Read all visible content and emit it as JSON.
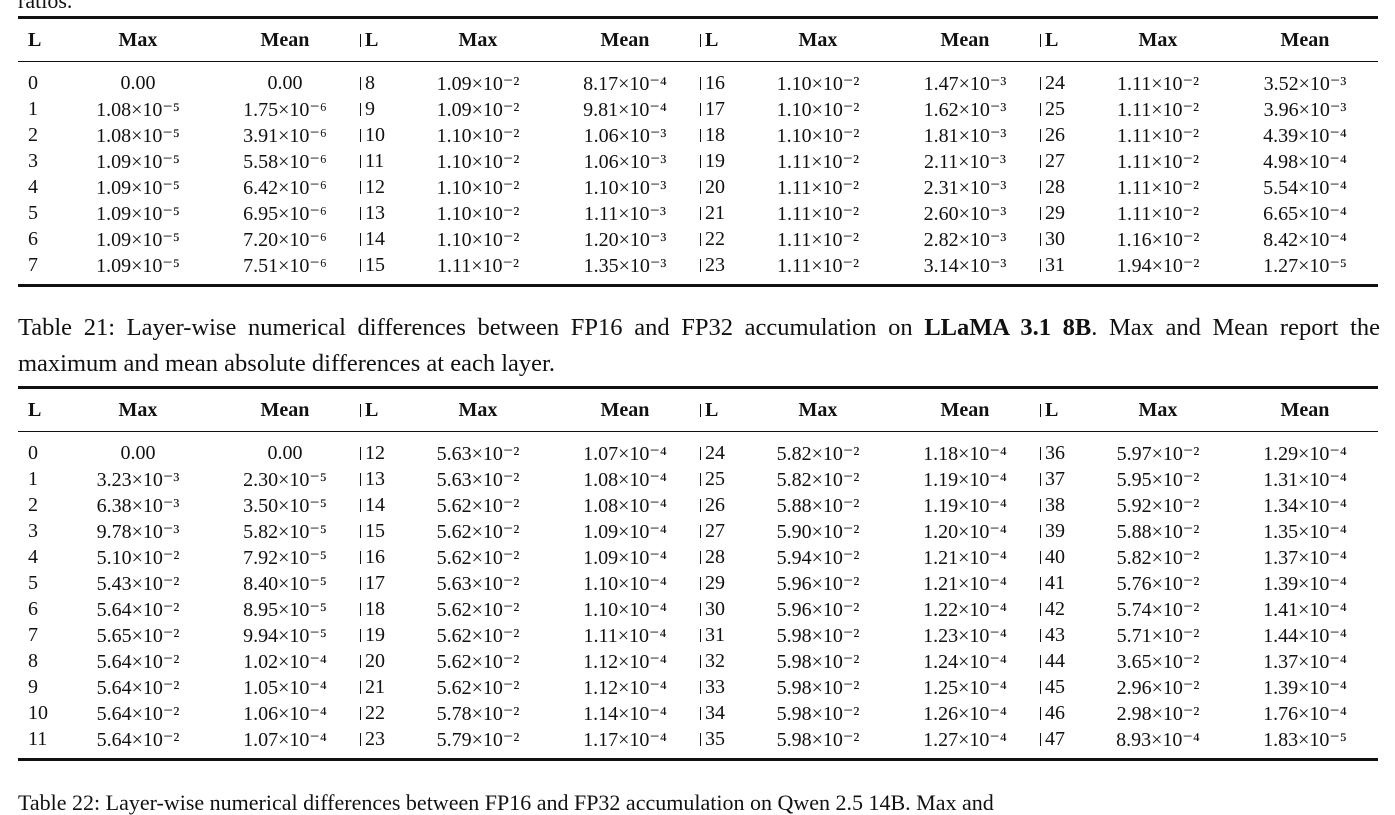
{
  "top_fragment": "ratios.",
  "bottom_fragment": "Table 22: Layer-wise numerical differences between FP16 and FP32 accumulation on Qwen 2.5 14B. Max and",
  "headers": [
    "L",
    "Max",
    "Mean"
  ],
  "table21": {
    "caption_pre": "Table 21: Layer-wise numerical differences between FP16 and FP32 accumulation on ",
    "caption_model": "LLaMA 3.1 8B",
    "caption_post": ". Max and Mean report the maximum and mean absolute differences at each layer.",
    "rows": [
      [
        [
          "0",
          "0.00",
          "0.00"
        ],
        [
          "8",
          "1.09×10⁻²",
          "8.17×10⁻⁴"
        ],
        [
          "16",
          "1.10×10⁻²",
          "1.47×10⁻³"
        ],
        [
          "24",
          "1.11×10⁻²",
          "3.52×10⁻³"
        ]
      ],
      [
        [
          "1",
          "1.08×10⁻⁵",
          "1.75×10⁻⁶"
        ],
        [
          "9",
          "1.09×10⁻²",
          "9.81×10⁻⁴"
        ],
        [
          "17",
          "1.10×10⁻²",
          "1.62×10⁻³"
        ],
        [
          "25",
          "1.11×10⁻²",
          "3.96×10⁻³"
        ]
      ],
      [
        [
          "2",
          "1.08×10⁻⁵",
          "3.91×10⁻⁶"
        ],
        [
          "10",
          "1.10×10⁻²",
          "1.06×10⁻³"
        ],
        [
          "18",
          "1.10×10⁻²",
          "1.81×10⁻³"
        ],
        [
          "26",
          "1.11×10⁻²",
          "4.39×10⁻⁴"
        ]
      ],
      [
        [
          "3",
          "1.09×10⁻⁵",
          "5.58×10⁻⁶"
        ],
        [
          "11",
          "1.10×10⁻²",
          "1.06×10⁻³"
        ],
        [
          "19",
          "1.11×10⁻²",
          "2.11×10⁻³"
        ],
        [
          "27",
          "1.11×10⁻²",
          "4.98×10⁻⁴"
        ]
      ],
      [
        [
          "4",
          "1.09×10⁻⁵",
          "6.42×10⁻⁶"
        ],
        [
          "12",
          "1.10×10⁻²",
          "1.10×10⁻³"
        ],
        [
          "20",
          "1.11×10⁻²",
          "2.31×10⁻³"
        ],
        [
          "28",
          "1.11×10⁻²",
          "5.54×10⁻⁴"
        ]
      ],
      [
        [
          "5",
          "1.09×10⁻⁵",
          "6.95×10⁻⁶"
        ],
        [
          "13",
          "1.10×10⁻²",
          "1.11×10⁻³"
        ],
        [
          "21",
          "1.11×10⁻²",
          "2.60×10⁻³"
        ],
        [
          "29",
          "1.11×10⁻²",
          "6.65×10⁻⁴"
        ]
      ],
      [
        [
          "6",
          "1.09×10⁻⁵",
          "7.20×10⁻⁶"
        ],
        [
          "14",
          "1.10×10⁻²",
          "1.20×10⁻³"
        ],
        [
          "22",
          "1.11×10⁻²",
          "2.82×10⁻³"
        ],
        [
          "30",
          "1.16×10⁻²",
          "8.42×10⁻⁴"
        ]
      ],
      [
        [
          "7",
          "1.09×10⁻⁵",
          "7.51×10⁻⁶"
        ],
        [
          "15",
          "1.11×10⁻²",
          "1.35×10⁻³"
        ],
        [
          "23",
          "1.11×10⁻²",
          "3.14×10⁻³"
        ],
        [
          "31",
          "1.94×10⁻²",
          "1.27×10⁻⁵"
        ]
      ]
    ]
  },
  "table22": {
    "rows": [
      [
        [
          "0",
          "0.00",
          "0.00"
        ],
        [
          "12",
          "5.63×10⁻²",
          "1.07×10⁻⁴"
        ],
        [
          "24",
          "5.82×10⁻²",
          "1.18×10⁻⁴"
        ],
        [
          "36",
          "5.97×10⁻²",
          "1.29×10⁻⁴"
        ]
      ],
      [
        [
          "1",
          "3.23×10⁻³",
          "2.30×10⁻⁵"
        ],
        [
          "13",
          "5.63×10⁻²",
          "1.08×10⁻⁴"
        ],
        [
          "25",
          "5.82×10⁻²",
          "1.19×10⁻⁴"
        ],
        [
          "37",
          "5.95×10⁻²",
          "1.31×10⁻⁴"
        ]
      ],
      [
        [
          "2",
          "6.38×10⁻³",
          "3.50×10⁻⁵"
        ],
        [
          "14",
          "5.62×10⁻²",
          "1.08×10⁻⁴"
        ],
        [
          "26",
          "5.88×10⁻²",
          "1.19×10⁻⁴"
        ],
        [
          "38",
          "5.92×10⁻²",
          "1.34×10⁻⁴"
        ]
      ],
      [
        [
          "3",
          "9.78×10⁻³",
          "5.82×10⁻⁵"
        ],
        [
          "15",
          "5.62×10⁻²",
          "1.09×10⁻⁴"
        ],
        [
          "27",
          "5.90×10⁻²",
          "1.20×10⁻⁴"
        ],
        [
          "39",
          "5.88×10⁻²",
          "1.35×10⁻⁴"
        ]
      ],
      [
        [
          "4",
          "5.10×10⁻²",
          "7.92×10⁻⁵"
        ],
        [
          "16",
          "5.62×10⁻²",
          "1.09×10⁻⁴"
        ],
        [
          "28",
          "5.94×10⁻²",
          "1.21×10⁻⁴"
        ],
        [
          "40",
          "5.82×10⁻²",
          "1.37×10⁻⁴"
        ]
      ],
      [
        [
          "5",
          "5.43×10⁻²",
          "8.40×10⁻⁵"
        ],
        [
          "17",
          "5.63×10⁻²",
          "1.10×10⁻⁴"
        ],
        [
          "29",
          "5.96×10⁻²",
          "1.21×10⁻⁴"
        ],
        [
          "41",
          "5.76×10⁻²",
          "1.39×10⁻⁴"
        ]
      ],
      [
        [
          "6",
          "5.64×10⁻²",
          "8.95×10⁻⁵"
        ],
        [
          "18",
          "5.62×10⁻²",
          "1.10×10⁻⁴"
        ],
        [
          "30",
          "5.96×10⁻²",
          "1.22×10⁻⁴"
        ],
        [
          "42",
          "5.74×10⁻²",
          "1.41×10⁻⁴"
        ]
      ],
      [
        [
          "7",
          "5.65×10⁻²",
          "9.94×10⁻⁵"
        ],
        [
          "19",
          "5.62×10⁻²",
          "1.11×10⁻⁴"
        ],
        [
          "31",
          "5.98×10⁻²",
          "1.23×10⁻⁴"
        ],
        [
          "43",
          "5.71×10⁻²",
          "1.44×10⁻⁴"
        ]
      ],
      [
        [
          "8",
          "5.64×10⁻²",
          "1.02×10⁻⁴"
        ],
        [
          "20",
          "5.62×10⁻²",
          "1.12×10⁻⁴"
        ],
        [
          "32",
          "5.98×10⁻²",
          "1.24×10⁻⁴"
        ],
        [
          "44",
          "3.65×10⁻²",
          "1.37×10⁻⁴"
        ]
      ],
      [
        [
          "9",
          "5.64×10⁻²",
          "1.05×10⁻⁴"
        ],
        [
          "21",
          "5.62×10⁻²",
          "1.12×10⁻⁴"
        ],
        [
          "33",
          "5.98×10⁻²",
          "1.25×10⁻⁴"
        ],
        [
          "45",
          "2.96×10⁻²",
          "1.39×10⁻⁴"
        ]
      ],
      [
        [
          "10",
          "5.64×10⁻²",
          "1.06×10⁻⁴"
        ],
        [
          "22",
          "5.78×10⁻²",
          "1.14×10⁻⁴"
        ],
        [
          "34",
          "5.98×10⁻²",
          "1.26×10⁻⁴"
        ],
        [
          "46",
          "2.98×10⁻²",
          "1.76×10⁻⁴"
        ]
      ],
      [
        [
          "11",
          "5.64×10⁻²",
          "1.07×10⁻⁴"
        ],
        [
          "23",
          "5.79×10⁻²",
          "1.17×10⁻⁴"
        ],
        [
          "35",
          "5.98×10⁻²",
          "1.27×10⁻⁴"
        ],
        [
          "47",
          "8.93×10⁻⁴",
          "1.83×10⁻⁵"
        ]
      ]
    ]
  }
}
